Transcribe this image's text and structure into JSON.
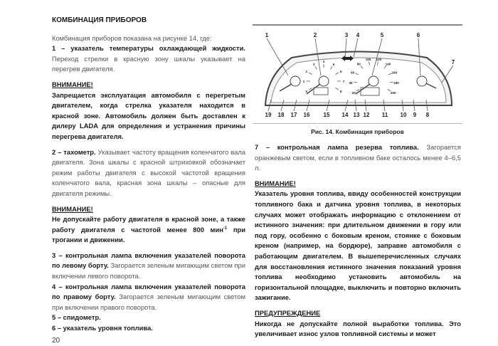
{
  "page_number": "20",
  "left": {
    "title": "КОМБИНАЦИЯ ПРИБОРОВ",
    "intro": "Комбинация приборов показана на рисунке 14, где:",
    "item1_bold": "1 – указатель температуры охлаждающей жидкости.",
    "item1_text": "Переход стрелки в красную зону шкалы указывает на перегрев двигателя.",
    "warning1_title": "ВНИМАНИЕ!",
    "warning1_text": "Запрещается эксплуатация автомобиля с перегретым двигателем, когда стрелка указателя находится в красной зоне. Автомобиль должен быть доставлен к дилеру LADA для определения и устранения причины перегрева двигателя.",
    "item2_bold": "2 – тахометр.",
    "item2_text": "Указывает частоту вращения коленчатого вала двигателя. Зона шкалы с красной штриховкой обозначает режим работы двигателя с высокой частотой вращения коленчатого вала, красная зона шкалы – опасные для двигателя режимы.",
    "warning2_title": "ВНИМАНИЕ!",
    "warning2_text_a": "Не допускайте работу двигателя в красной зоне, а также работу двигателя с частотой менее 800 мин",
    "warning2_sup": "-1",
    "warning2_text_b": " при трогании и движении.",
    "item3_bold": "3 – контрольная лампа включения указателей поворота по левому борту.",
    "item3_text": "Загорается зеленым мигающим светом при включении левого поворота.",
    "item4_bold": "4 – контрольная лампа включения указателей поворота по правому борту.",
    "item4_text": "Загорается зеленым мигающим светом при включении правого поворота.",
    "item5_bold": "5 – спидометр.",
    "item6_bold": "6 – указатель уровня топлива."
  },
  "figure": {
    "caption": "Рис. 14. Комбинация приборов",
    "callouts_top": [
      "1",
      "2",
      "3",
      "4",
      "5",
      "6",
      "7"
    ],
    "callouts_bottom": [
      "19",
      "18",
      "17",
      "16",
      "15",
      "14",
      "13",
      "12",
      "11",
      "10",
      "9",
      "8"
    ],
    "tacho_ticks": [
      "0",
      "1",
      "2",
      "3",
      "4",
      "5",
      "6",
      "7",
      "8"
    ],
    "speedo_ticks": [
      "20",
      "40",
      "60",
      "80",
      "100",
      "120",
      "140",
      "160",
      "180",
      "200"
    ]
  },
  "right": {
    "item7_bold": "7 – контрольная лампа резерва топлива.",
    "item7_text": "Загорается оранжевым светом, если в топливном баке осталось менее 4–6,5 л.",
    "warning_title": "ВНИМАНИЕ!",
    "warning_text": "Указатель уровня топлива, ввиду особенностей конструкции топливного бака и датчика уровня топлива, в некоторых случаях может отображать информацию с отклонением от истинного значения: при длительном движении в гору или под гору, особенно с боковым креном, стоянке с боковым креном (например, на бордюре), заправке автомобиля с работающим двигателем. В вышеперечисленных случаях для восстановления истинного значения показаний уровня топлива необходимо установить автомобиль на горизонтальной площадке, выключить и повторно включить зажигание.",
    "caution_title": "ПРЕДУПРЕЖДЕНИЕ",
    "caution_text": "Никогда не допускайте полной выработки топлива. Это увеличивает износ узлов топливной системы и может"
  }
}
